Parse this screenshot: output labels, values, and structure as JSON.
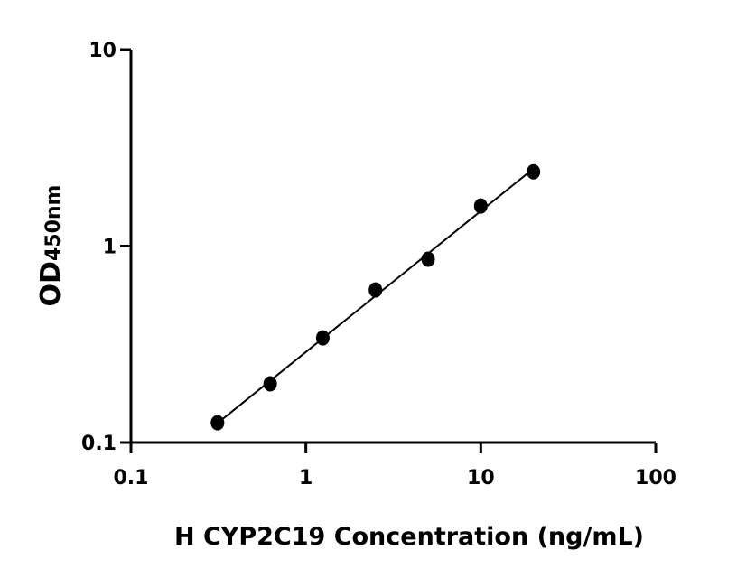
{
  "chart_data": {
    "type": "scatter",
    "xlabel": "H CYP2C19 Concentration (ng/mL)",
    "ylabel": "OD",
    "ylabel_sub": "450nm",
    "x_scale": "log",
    "y_scale": "log",
    "xlim": [
      0.1,
      100
    ],
    "ylim": [
      0.1,
      10
    ],
    "x_ticks": [
      "0.1",
      "1",
      "10",
      "100"
    ],
    "y_ticks": [
      "0.1",
      "1",
      "10"
    ],
    "grid": false,
    "fit_line": true,
    "marker_color": "#000000",
    "x": [
      0.3125,
      0.625,
      1.25,
      2.5,
      5,
      10,
      20
    ],
    "y": [
      0.126,
      0.199,
      0.341,
      0.598,
      0.858,
      1.6,
      2.39
    ]
  }
}
